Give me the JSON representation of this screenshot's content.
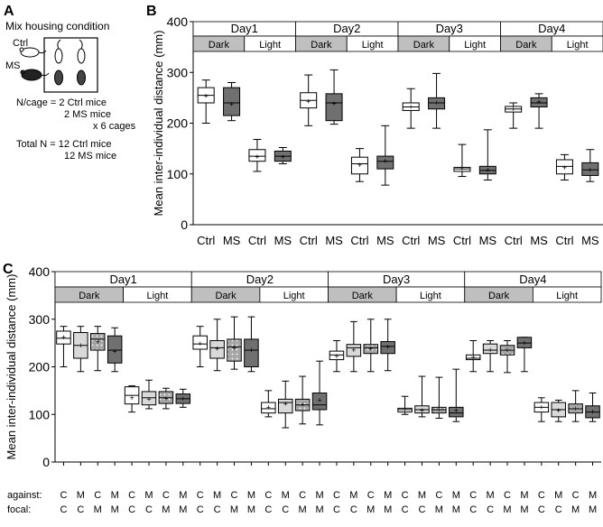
{
  "panels": {
    "a": {
      "label": "A",
      "title": "Mix housing condition",
      "ctrl_label": "Ctrl",
      "ms_label": "MS",
      "lines": [
        "N/cage = 2 Ctrl mice",
        "2 MS mice",
        "x 6 cages",
        "Total N = 12 Ctrl mice",
        "12 MS mice"
      ]
    },
    "b": {
      "label": "B"
    },
    "c": {
      "label": "C"
    }
  },
  "colors": {
    "ctrl": "#ffffff",
    "ms": "#707070",
    "dark_band": "#bfbfbf",
    "light_band": "#ffffff",
    "ms_focal_ctrl_against": "#d9d9d9",
    "dotted_box": "#a6a6a6"
  },
  "icons": {
    "ctrl_mouse": "white-mouse-icon",
    "ms_mouse": "black-mouse-icon"
  },
  "chart_data": [
    {
      "type": "box",
      "panel": "B",
      "ylabel": "Mean inter-individual distance (mm)",
      "ylim": [
        0,
        400
      ],
      "yticks": [
        0,
        100,
        200,
        300,
        400
      ],
      "days": [
        "Day1",
        "Day2",
        "Day3",
        "Day4"
      ],
      "phases": [
        "Dark",
        "Light"
      ],
      "groups": [
        "Ctrl",
        "MS"
      ],
      "group_colors": [
        "ctrl",
        "ms"
      ],
      "boxes": [
        [
          [
            [
              200,
              240,
              255,
              270,
              285,
              253
            ],
            [
              205,
              215,
              240,
              270,
              280,
              237
            ]
          ],
          [
            [
              105,
              125,
              135,
              148,
              168,
              133
            ],
            [
              120,
              125,
              135,
              145,
              152,
              133
            ]
          ]
        ],
        [
          [
            [
              195,
              230,
              245,
              260,
              295,
              243
            ],
            [
              198,
              205,
              240,
              258,
              305,
              238
            ]
          ],
          [
            [
              85,
              100,
              120,
              133,
              150,
              117
            ],
            [
              78,
              110,
              125,
              135,
              195,
              125
            ]
          ]
        ],
        [
          [
            [
              190,
              225,
              232,
              240,
              268,
              232
            ],
            [
              190,
              228,
              240,
              250,
              298,
              240
            ]
          ],
          [
            [
              95,
              105,
              110,
              113,
              158,
              110
            ],
            [
              88,
              100,
              107,
              115,
              187,
              108
            ]
          ]
        ],
        [
          [
            [
              190,
              222,
              228,
              233,
              240,
              228
            ],
            [
              190,
              232,
              240,
              250,
              258,
              242
            ]
          ],
          [
            [
              88,
              100,
              115,
              128,
              138,
              112
            ],
            [
              85,
              97,
              108,
              122,
              148,
              108
            ]
          ]
        ]
      ]
    },
    {
      "type": "box",
      "panel": "C",
      "ylabel": "Mean inter-individual distance (mm)",
      "ylim": [
        0,
        400
      ],
      "yticks": [
        0,
        100,
        200,
        300,
        400
      ],
      "days": [
        "Day1",
        "Day2",
        "Day3",
        "Day4"
      ],
      "phases": [
        "Dark",
        "Light"
      ],
      "row_labels": [
        "against:",
        "focal:"
      ],
      "against": [
        "C",
        "M",
        "C",
        "M"
      ],
      "focal": [
        "C",
        "C",
        "M",
        "M"
      ],
      "group_colors": [
        "ctrl",
        "ms_focal_ctrl_against",
        "dotted_box",
        "ms"
      ],
      "boxes": [
        [
          [
            [
              200,
              248,
              260,
              275,
              285,
              262
            ],
            [
              190,
              218,
              245,
              272,
              285,
              245
            ],
            [
              192,
              235,
              258,
              270,
              285,
              252
            ],
            [
              190,
              208,
              235,
              265,
              282,
              232
            ]
          ],
          [
            [
              105,
              122,
              140,
              158,
              160,
              135
            ],
            [
              112,
              120,
              135,
              148,
              172,
              132
            ],
            [
              112,
              123,
              135,
              148,
              155,
              133
            ],
            [
              115,
              123,
              133,
              143,
              153,
              133
            ]
          ]
        ],
        [
          [
            [
              200,
              237,
              248,
              265,
              285,
              248
            ],
            [
              192,
              218,
              240,
              255,
              300,
              238
            ],
            [
              195,
              212,
              242,
              258,
              305,
              240
            ],
            [
              190,
              200,
              235,
              258,
              305,
              235
            ]
          ],
          [
            [
              95,
              103,
              112,
              125,
              150,
              115
            ],
            [
              72,
              103,
              125,
              132,
              170,
              122
            ],
            [
              80,
              108,
              120,
              132,
              180,
              120
            ],
            [
              78,
              110,
              120,
              145,
              212,
              130
            ]
          ]
        ],
        [
          [
            [
              190,
              215,
              225,
              233,
              255,
              222
            ],
            [
              190,
              222,
              240,
              247,
              295,
              235
            ],
            [
              190,
              228,
              240,
              247,
              300,
              238
            ],
            [
              192,
              228,
              243,
              253,
              300,
              242
            ]
          ],
          [
            [
              100,
              105,
              110,
              113,
              138,
              110
            ],
            [
              95,
              103,
              110,
              118,
              180,
              108
            ],
            [
              92,
              103,
              110,
              115,
              178,
              110
            ],
            [
              85,
              95,
              103,
              115,
              195,
              108
            ]
          ]
        ],
        [
          [
            [
              190,
              215,
              218,
              225,
              255,
              220
            ],
            [
              190,
              228,
              235,
              248,
              255,
              235
            ],
            [
              188,
              225,
              235,
              245,
              255,
              235
            ],
            [
              190,
              240,
              250,
              262,
              262,
              250
            ]
          ],
          [
            [
              85,
              105,
              115,
              125,
              135,
              115
            ],
            [
              85,
              95,
              110,
              125,
              130,
              108
            ],
            [
              85,
              103,
              112,
              122,
              150,
              112
            ],
            [
              85,
              93,
              105,
              118,
              145,
              105
            ]
          ]
        ]
      ]
    }
  ]
}
